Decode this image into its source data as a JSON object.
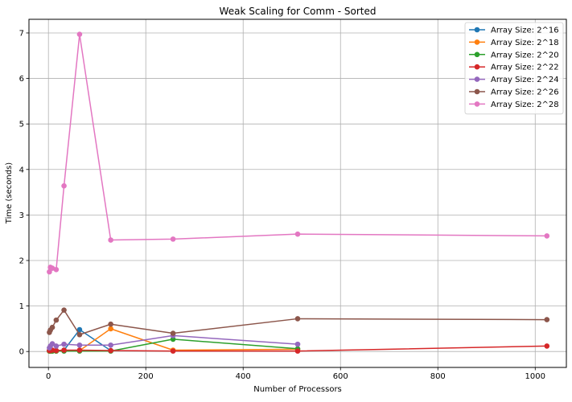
{
  "chart_data": {
    "type": "line",
    "title": "Weak Scaling for Comm - Sorted",
    "xlabel": "Number of Processors",
    "ylabel": "Time (seconds)",
    "xlim": [
      -40,
      1064
    ],
    "ylim": [
      -0.35,
      7.3
    ],
    "xticks": [
      0,
      200,
      400,
      600,
      800,
      1000
    ],
    "yticks": [
      0,
      1,
      2,
      3,
      4,
      5,
      6,
      7
    ],
    "grid": true,
    "legend_position": "top-right",
    "series": [
      {
        "name": "Array Size: 2^16",
        "color": "#1f77b4",
        "x": [
          2,
          4,
          8,
          16,
          32,
          64,
          128
        ],
        "y": [
          0.02,
          0.03,
          0.02,
          0.02,
          0.03,
          0.48,
          0.02
        ]
      },
      {
        "name": "Array Size: 2^18",
        "color": "#ff7f0e",
        "x": [
          2,
          4,
          8,
          16,
          32,
          64,
          128,
          256,
          512
        ],
        "y": [
          0.01,
          0.01,
          0.01,
          0.01,
          0.02,
          0.02,
          0.5,
          0.03,
          0.05
        ]
      },
      {
        "name": "Array Size: 2^20",
        "color": "#2ca02c",
        "x": [
          2,
          4,
          8,
          16,
          32,
          64,
          128,
          256,
          512
        ],
        "y": [
          0.01,
          0.01,
          0.01,
          0.01,
          0.01,
          0.01,
          0.01,
          0.27,
          0.06
        ]
      },
      {
        "name": "Array Size: 2^22",
        "color": "#d62728",
        "x": [
          2,
          4,
          8,
          16,
          32,
          64,
          128,
          256,
          512,
          1024
        ],
        "y": [
          0.02,
          0.02,
          0.03,
          0.02,
          0.03,
          0.03,
          0.02,
          0.01,
          0.01,
          0.12
        ]
      },
      {
        "name": "Array Size: 2^24",
        "color": "#9467bd",
        "x": [
          2,
          4,
          8,
          16,
          32,
          64,
          128,
          256,
          512
        ],
        "y": [
          0.08,
          0.12,
          0.17,
          0.12,
          0.16,
          0.14,
          0.14,
          0.35,
          0.16
        ]
      },
      {
        "name": "Array Size: 2^26",
        "color": "#8c564b",
        "x": [
          2,
          4,
          8,
          16,
          32,
          64,
          128,
          256,
          512,
          1024
        ],
        "y": [
          0.42,
          0.47,
          0.53,
          0.69,
          0.91,
          0.37,
          0.6,
          0.4,
          0.72,
          0.7
        ]
      },
      {
        "name": "Array Size: 2^28",
        "color": "#e377c2",
        "x": [
          2,
          4,
          8,
          16,
          32,
          64,
          128,
          256,
          512,
          1024
        ],
        "y": [
          1.75,
          1.85,
          1.83,
          1.8,
          3.64,
          6.97,
          2.45,
          2.47,
          2.58,
          2.54
        ]
      }
    ]
  }
}
